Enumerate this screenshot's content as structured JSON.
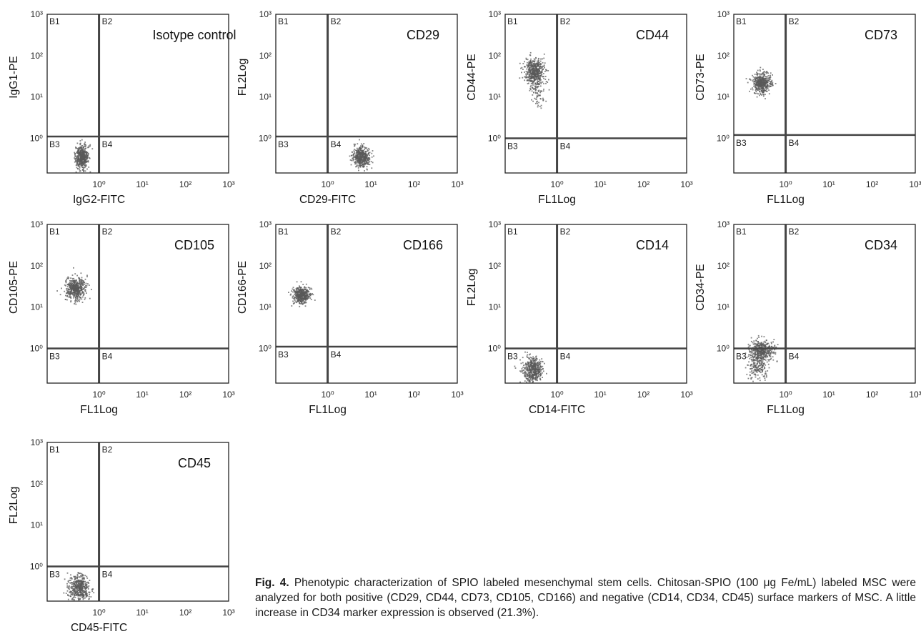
{
  "figure": {
    "caption_label": "Fig. 4.",
    "caption_text": "Phenotypic characterization of SPIO labeled mesenchymal stem cells. Chitosan-SPIO (100 μg Fe/mL) labeled MSC were analyzed for both positive (CD29, CD44, CD73, CD105, CD166) and negative (CD14, CD34, CD45) surface markers of MSC. A little increase in CD34 marker expression is observed (21.3%)."
  },
  "colors": {
    "dots": "#5a5a5a",
    "frame": "#222222",
    "gate": "#444444"
  },
  "chart_data": [
    {
      "type": "scatter",
      "title": "Isotype control",
      "xlabel": "IgG2-FITC",
      "ylabel": "IgG1-PE",
      "x_scale": "log",
      "y_scale": "log",
      "x_ticks": [
        "10⁰",
        "10¹",
        "10²",
        "10³"
      ],
      "y_ticks": [
        "10⁰",
        "10¹",
        "10²",
        "10³"
      ],
      "quadrants": [
        "B1",
        "B2",
        "B3",
        "B4"
      ],
      "gate": {
        "x": 1.0,
        "y": 1.1
      },
      "clusters": [
        {
          "center": {
            "x": 0.4,
            "y": 0.35
          },
          "spread": {
            "x": 0.08,
            "y": 0.15
          },
          "count": 460
        }
      ]
    },
    {
      "type": "scatter",
      "title": "CD29",
      "xlabel": "CD29-FITC",
      "ylabel": "FL2Log",
      "x_scale": "log",
      "y_scale": "log",
      "x_ticks": [
        "10⁰",
        "10¹",
        "10²",
        "10³"
      ],
      "y_ticks": [
        "10⁰",
        "10¹",
        "10²",
        "10³"
      ],
      "quadrants": [
        "B1",
        "B2",
        "B3",
        "B4"
      ],
      "gate": {
        "x": 1.0,
        "y": 1.1
      },
      "clusters": [
        {
          "center": {
            "x": 6.0,
            "y": 0.35
          },
          "spread": {
            "x": 0.1,
            "y": 0.12
          },
          "count": 460
        }
      ]
    },
    {
      "type": "scatter",
      "title": "CD44",
      "xlabel": "FL1Log",
      "ylabel": "CD44-PE",
      "x_scale": "log",
      "y_scale": "log",
      "x_ticks": [
        "10⁰",
        "10¹",
        "10²",
        "10³"
      ],
      "y_ticks": [
        "10⁰",
        "10¹",
        "10²",
        "10³"
      ],
      "quadrants": [
        "B1",
        "B2",
        "B3",
        "B4"
      ],
      "gate": {
        "x": 1.0,
        "y": 1.0
      },
      "clusters": [
        {
          "center": {
            "x": 0.3,
            "y": 40
          },
          "spread": {
            "x": 0.11,
            "y": 0.16
          },
          "count": 520
        },
        {
          "center": {
            "x": 0.35,
            "y": 12
          },
          "spread": {
            "x": 0.08,
            "y": 0.16
          },
          "count": 70
        }
      ]
    },
    {
      "type": "scatter",
      "title": "CD73",
      "xlabel": "FL1Log",
      "ylabel": "CD73-PE",
      "x_scale": "log",
      "y_scale": "log",
      "x_ticks": [
        "10⁰",
        "10¹",
        "10²",
        "10³"
      ],
      "y_ticks": [
        "10⁰",
        "10¹",
        "10²",
        "10³"
      ],
      "quadrants": [
        "B1",
        "B2",
        "B3",
        "B4"
      ],
      "gate": {
        "x": 1.0,
        "y": 1.2
      },
      "clusters": [
        {
          "center": {
            "x": 0.28,
            "y": 22
          },
          "spread": {
            "x": 0.1,
            "y": 0.13
          },
          "count": 480
        }
      ]
    },
    {
      "type": "scatter",
      "title": "CD105",
      "xlabel": "FL1Log",
      "ylabel": "CD105-PE",
      "x_scale": "log",
      "y_scale": "log",
      "x_ticks": [
        "10⁰",
        "10¹",
        "10²",
        "10³"
      ],
      "y_ticks": [
        "10⁰",
        "10¹",
        "10²",
        "10³"
      ],
      "quadrants": [
        "B1",
        "B2",
        "B3",
        "B4"
      ],
      "gate": {
        "x": 1.0,
        "y": 1.0
      },
      "clusters": [
        {
          "center": {
            "x": 0.28,
            "y": 28
          },
          "spread": {
            "x": 0.11,
            "y": 0.13
          },
          "count": 500
        }
      ]
    },
    {
      "type": "scatter",
      "title": "CD166",
      "xlabel": "FL1Log",
      "ylabel": "CD166-PE",
      "x_scale": "log",
      "y_scale": "log",
      "x_ticks": [
        "10⁰",
        "10¹",
        "10²",
        "10³"
      ],
      "y_ticks": [
        "10⁰",
        "10¹",
        "10²",
        "10³"
      ],
      "quadrants": [
        "B1",
        "B2",
        "B3",
        "B4"
      ],
      "gate": {
        "x": 1.0,
        "y": 1.1
      },
      "clusters": [
        {
          "center": {
            "x": 0.25,
            "y": 20
          },
          "spread": {
            "x": 0.1,
            "y": 0.1
          },
          "count": 480
        }
      ]
    },
    {
      "type": "scatter",
      "title": "CD14",
      "xlabel": "CD14-FITC",
      "ylabel": "FL2Log",
      "x_scale": "log",
      "y_scale": "log",
      "x_ticks": [
        "10⁰",
        "10¹",
        "10²",
        "10³"
      ],
      "y_ticks": [
        "10⁰",
        "10¹",
        "10²",
        "10³"
      ],
      "quadrants": [
        "B1",
        "B2",
        "B3",
        "B4"
      ],
      "gate": {
        "x": 1.0,
        "y": 1.0
      },
      "clusters": [
        {
          "center": {
            "x": 0.28,
            "y": 0.3
          },
          "spread": {
            "x": 0.12,
            "y": 0.16
          },
          "count": 480
        }
      ]
    },
    {
      "type": "scatter",
      "title": "CD34",
      "xlabel": "FL1Log",
      "ylabel": "CD34-PE",
      "x_scale": "log",
      "y_scale": "log",
      "x_ticks": [
        "10⁰",
        "10¹",
        "10²",
        "10³"
      ],
      "y_ticks": [
        "10⁰",
        "10¹",
        "10²",
        "10³"
      ],
      "quadrants": [
        "B1",
        "B2",
        "B3",
        "B4"
      ],
      "gate": {
        "x": 1.0,
        "y": 1.0
      },
      "clusters": [
        {
          "center": {
            "x": 0.28,
            "y": 0.85
          },
          "spread": {
            "x": 0.13,
            "y": 0.13
          },
          "count": 440
        },
        {
          "center": {
            "x": 0.22,
            "y": 0.35
          },
          "spread": {
            "x": 0.12,
            "y": 0.14
          },
          "count": 160
        }
      ]
    },
    {
      "type": "scatter",
      "title": "CD45",
      "xlabel": "CD45-FITC",
      "ylabel": "FL2Log",
      "x_scale": "log",
      "y_scale": "log",
      "x_ticks": [
        "10⁰",
        "10¹",
        "10²",
        "10³"
      ],
      "y_ticks": [
        "10⁰",
        "10¹",
        "10²",
        "10³"
      ],
      "quadrants": [
        "B1",
        "B2",
        "B3",
        "B4"
      ],
      "gate": {
        "x": 1.0,
        "y": 1.0
      },
      "clusters": [
        {
          "center": {
            "x": 0.35,
            "y": 0.3
          },
          "spread": {
            "x": 0.12,
            "y": 0.15
          },
          "count": 460
        }
      ]
    }
  ]
}
